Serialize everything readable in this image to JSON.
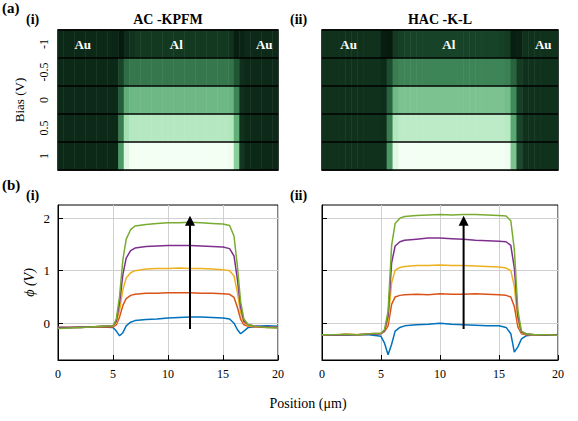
{
  "chart_data": [
    {
      "type": "heatmap",
      "figure_label": "(a)",
      "subpanel": "(i)",
      "title": "AC -KPFM",
      "ylabel": "Bias (V)",
      "x": [
        0.25,
        0.75,
        1.25,
        1.75,
        2.25,
        2.75,
        3.25,
        3.75,
        4.25,
        4.75,
        5.25,
        5.75,
        6.25,
        6.75,
        7.25,
        7.75,
        8.25,
        8.75,
        9.25,
        9.75,
        10.25,
        10.75,
        11.25,
        11.75,
        12.25,
        12.75,
        13.25,
        13.75,
        14.25,
        14.75,
        15.25,
        15.75,
        16.25,
        16.75,
        17.25,
        17.75,
        18.25,
        18.75,
        19.25,
        19.75
      ],
      "y": [
        -1,
        -0.5,
        0,
        0.5,
        1
      ],
      "cells": [
        [
          -0.08,
          -0.08,
          -0.08,
          -0.08,
          -0.08,
          -0.08,
          -0.08,
          -0.08,
          -0.08,
          -0.08,
          -0.1,
          -0.22,
          -0.05,
          0.03,
          0.08,
          0.08,
          0.08,
          0.08,
          0.08,
          0.08,
          0.08,
          0.08,
          0.08,
          0.08,
          0.08,
          0.08,
          0.08,
          0.08,
          0.08,
          0.08,
          0.07,
          0.03,
          -0.18,
          -0.12,
          -0.06,
          -0.06,
          -0.06,
          -0.06,
          -0.06,
          -0.06
        ],
        [
          -0.08,
          -0.08,
          -0.08,
          -0.08,
          -0.08,
          -0.08,
          -0.08,
          -0.08,
          -0.08,
          -0.08,
          -0.08,
          0.2,
          0.5,
          0.57,
          0.57,
          0.57,
          0.57,
          0.57,
          0.57,
          0.57,
          0.57,
          0.57,
          0.57,
          0.57,
          0.57,
          0.57,
          0.57,
          0.57,
          0.57,
          0.57,
          0.57,
          0.55,
          0.35,
          -0.02,
          -0.07,
          -0.07,
          -0.07,
          -0.07,
          -0.07,
          -0.07
        ],
        [
          -0.07,
          -0.07,
          -0.07,
          -0.07,
          -0.07,
          -0.07,
          -0.07,
          -0.07,
          -0.07,
          -0.07,
          -0.07,
          0.4,
          0.95,
          1.03,
          1.03,
          1.03,
          1.03,
          1.03,
          1.03,
          1.03,
          1.03,
          1.03,
          1.03,
          1.03,
          1.03,
          1.03,
          1.03,
          1.03,
          1.03,
          1.03,
          1.03,
          1.0,
          0.65,
          0.0,
          -0.07,
          -0.07,
          -0.07,
          -0.07,
          -0.07,
          -0.07
        ],
        [
          -0.07,
          -0.07,
          -0.07,
          -0.07,
          -0.07,
          -0.07,
          -0.07,
          -0.07,
          -0.07,
          -0.07,
          -0.07,
          0.6,
          1.35,
          1.47,
          1.47,
          1.47,
          1.47,
          1.47,
          1.47,
          1.47,
          1.47,
          1.47,
          1.47,
          1.47,
          1.47,
          1.47,
          1.47,
          1.47,
          1.47,
          1.47,
          1.47,
          1.43,
          0.95,
          0.02,
          -0.07,
          -0.07,
          -0.07,
          -0.07,
          -0.07,
          -0.07
        ],
        [
          -0.08,
          -0.08,
          -0.08,
          -0.08,
          -0.08,
          -0.08,
          -0.08,
          -0.08,
          -0.08,
          -0.08,
          -0.08,
          0.8,
          1.75,
          1.9,
          1.9,
          1.9,
          1.9,
          1.9,
          1.9,
          1.9,
          1.9,
          1.9,
          1.9,
          1.9,
          1.9,
          1.9,
          1.9,
          1.9,
          1.9,
          1.9,
          1.9,
          1.86,
          1.2,
          0.05,
          -0.08,
          -0.08,
          -0.08,
          -0.08,
          -0.08,
          -0.08
        ]
      ],
      "annotations": [
        {
          "text": "Au",
          "x": 2.25
        },
        {
          "text": "Al",
          "x": 10.75
        },
        {
          "text": "Au",
          "x": 18.75
        }
      ]
    },
    {
      "type": "heatmap",
      "subpanel": "(ii)",
      "title": "HAC -K-L",
      "tick_labels": false,
      "x": [
        0.25,
        0.75,
        1.25,
        1.75,
        2.25,
        2.75,
        3.25,
        3.75,
        4.25,
        4.75,
        5.25,
        5.75,
        6.25,
        6.75,
        7.25,
        7.75,
        8.25,
        8.75,
        9.25,
        9.75,
        10.25,
        10.75,
        11.25,
        11.75,
        12.25,
        12.75,
        13.25,
        13.75,
        14.25,
        14.75,
        15.25,
        15.75,
        16.25,
        16.75,
        17.25,
        17.75,
        18.25,
        18.75,
        19.25,
        19.75
      ],
      "y": [
        -1,
        -0.5,
        0,
        0.5,
        1
      ],
      "cells": [
        [
          -0.22,
          -0.22,
          -0.22,
          -0.22,
          -0.22,
          -0.22,
          -0.22,
          -0.22,
          -0.22,
          -0.22,
          -0.45,
          -0.5,
          -0.12,
          -0.05,
          -0.02,
          -0.02,
          -0.02,
          -0.02,
          -0.02,
          -0.02,
          -0.02,
          -0.02,
          -0.02,
          -0.02,
          -0.02,
          -0.02,
          -0.02,
          -0.02,
          -0.02,
          -0.02,
          -0.05,
          -0.1,
          -0.45,
          -0.4,
          -0.22,
          -0.22,
          -0.22,
          -0.22,
          -0.22,
          -0.22
        ],
        [
          -0.22,
          -0.22,
          -0.22,
          -0.22,
          -0.22,
          -0.22,
          -0.22,
          -0.22,
          -0.22,
          -0.22,
          -0.3,
          0.1,
          0.5,
          0.55,
          0.55,
          0.55,
          0.55,
          0.55,
          0.55,
          0.55,
          0.55,
          0.55,
          0.55,
          0.55,
          0.55,
          0.55,
          0.55,
          0.55,
          0.55,
          0.55,
          0.55,
          0.52,
          0.3,
          -0.1,
          -0.22,
          -0.22,
          -0.22,
          -0.22,
          -0.22,
          -0.22
        ],
        [
          -0.22,
          -0.22,
          -0.22,
          -0.22,
          -0.22,
          -0.22,
          -0.22,
          -0.22,
          -0.22,
          -0.22,
          -0.28,
          0.3,
          1.02,
          1.1,
          1.1,
          1.1,
          1.1,
          1.1,
          1.1,
          1.1,
          1.1,
          1.1,
          1.1,
          1.1,
          1.1,
          1.1,
          1.1,
          1.1,
          1.1,
          1.1,
          1.1,
          1.05,
          0.6,
          -0.05,
          -0.22,
          -0.22,
          -0.22,
          -0.22,
          -0.22,
          -0.22
        ],
        [
          -0.22,
          -0.22,
          -0.22,
          -0.22,
          -0.22,
          -0.22,
          -0.22,
          -0.22,
          -0.22,
          -0.22,
          -0.26,
          0.5,
          1.5,
          1.6,
          1.6,
          1.6,
          1.6,
          1.6,
          1.6,
          1.6,
          1.6,
          1.6,
          1.6,
          1.6,
          1.6,
          1.6,
          1.6,
          1.6,
          1.6,
          1.6,
          1.6,
          1.55,
          0.85,
          0.0,
          -0.22,
          -0.22,
          -0.22,
          -0.22,
          -0.22,
          -0.22
        ],
        [
          -0.22,
          -0.22,
          -0.22,
          -0.22,
          -0.22,
          -0.22,
          -0.22,
          -0.22,
          -0.22,
          -0.22,
          -0.24,
          0.7,
          1.9,
          2.05,
          2.05,
          2.05,
          2.05,
          2.05,
          2.05,
          2.05,
          2.05,
          2.05,
          2.05,
          2.05,
          2.05,
          2.05,
          2.05,
          2.05,
          2.05,
          2.05,
          2.05,
          2.0,
          1.1,
          0.05,
          -0.22,
          -0.22,
          -0.22,
          -0.22,
          -0.22,
          -0.22
        ]
      ],
      "annotations": [
        {
          "text": "Au",
          "x": 2.25
        },
        {
          "text": "Al",
          "x": 10.75
        },
        {
          "text": "Au",
          "x": 18.75
        }
      ]
    },
    {
      "type": "line",
      "figure_label": "(b)",
      "subpanel": "(i)",
      "xlabel": "Position (μm)",
      "ylabel": "ϕ (V)",
      "grid": true,
      "x": [
        0,
        1,
        2,
        3,
        4,
        5,
        5.3,
        5.6,
        5.9,
        6.2,
        6.6,
        7,
        8,
        9,
        10,
        11,
        12,
        13,
        14,
        15,
        15.6,
        16,
        16.3,
        16.6,
        16.9,
        17.3,
        18,
        19,
        20
      ],
      "xlim": [
        0,
        20
      ],
      "xticks": [
        0,
        5,
        10,
        15,
        20
      ],
      "ylim": [
        -0.7,
        2.25
      ],
      "yticks": [
        0,
        1,
        2
      ],
      "series": [
        {
          "color": "#0072BD",
          "values": [
            -0.08,
            -0.08,
            -0.08,
            -0.07,
            -0.07,
            -0.08,
            -0.15,
            -0.24,
            -0.18,
            -0.05,
            0.02,
            0.05,
            0.07,
            0.08,
            0.1,
            0.11,
            0.12,
            0.12,
            0.11,
            0.1,
            0.08,
            0.0,
            -0.12,
            -0.2,
            -0.15,
            -0.08,
            -0.06,
            -0.05,
            -0.06
          ]
        },
        {
          "color": "#D95319",
          "values": [
            -0.08,
            -0.08,
            -0.08,
            -0.07,
            -0.07,
            -0.07,
            -0.03,
            0.12,
            0.34,
            0.47,
            0.53,
            0.55,
            0.57,
            0.57,
            0.58,
            0.58,
            0.58,
            0.57,
            0.57,
            0.56,
            0.55,
            0.49,
            0.31,
            0.08,
            -0.03,
            -0.06,
            -0.07,
            -0.08,
            -0.08
          ]
        },
        {
          "color": "#EDB120",
          "values": [
            -0.08,
            -0.08,
            -0.07,
            -0.07,
            -0.06,
            -0.06,
            0.01,
            0.25,
            0.64,
            0.86,
            0.96,
            1.0,
            1.03,
            1.04,
            1.04,
            1.05,
            1.04,
            1.04,
            1.03,
            1.02,
            1.0,
            0.9,
            0.59,
            0.2,
            0.01,
            -0.05,
            -0.06,
            -0.07,
            -0.08
          ]
        },
        {
          "color": "#7E2F8E",
          "values": [
            -0.08,
            -0.08,
            -0.07,
            -0.07,
            -0.06,
            -0.05,
            0.04,
            0.39,
            0.93,
            1.24,
            1.38,
            1.43,
            1.46,
            1.47,
            1.48,
            1.48,
            1.48,
            1.47,
            1.46,
            1.45,
            1.42,
            1.28,
            0.85,
            0.31,
            0.04,
            -0.03,
            -0.06,
            -0.07,
            -0.08
          ]
        },
        {
          "color": "#77AC30",
          "values": [
            -0.1,
            -0.09,
            -0.08,
            -0.07,
            -0.06,
            -0.05,
            0.08,
            0.52,
            1.21,
            1.6,
            1.78,
            1.85,
            1.88,
            1.9,
            1.91,
            1.91,
            1.92,
            1.91,
            1.9,
            1.89,
            1.86,
            1.66,
            1.1,
            0.41,
            0.08,
            -0.03,
            -0.06,
            -0.08,
            -0.09
          ]
        }
      ]
    },
    {
      "type": "line",
      "subpanel": "(ii)",
      "grid": true,
      "tick_labels": "x",
      "x": [
        0,
        1,
        2,
        3,
        4,
        5,
        5.3,
        5.6,
        5.9,
        6.2,
        6.6,
        7,
        8,
        9,
        10,
        11,
        12,
        13,
        14,
        15,
        15.6,
        16,
        16.3,
        16.6,
        16.9,
        17.3,
        18,
        19,
        20
      ],
      "xlim": [
        0,
        20
      ],
      "xticks": [
        0,
        5,
        10,
        15,
        20
      ],
      "ylim": [
        -0.7,
        2.25
      ],
      "yticks": [
        0,
        1,
        2
      ],
      "series": [
        {
          "color": "#0072BD",
          "values": [
            -0.22,
            -0.22,
            -0.23,
            -0.22,
            -0.22,
            -0.25,
            -0.38,
            -0.6,
            -0.4,
            -0.15,
            -0.08,
            -0.05,
            -0.03,
            -0.02,
            0.0,
            -0.02,
            -0.03,
            -0.04,
            -0.05,
            -0.05,
            -0.08,
            -0.2,
            -0.55,
            -0.45,
            -0.3,
            -0.24,
            -0.22,
            -0.22,
            -0.23
          ]
        },
        {
          "color": "#D95319",
          "values": [
            -0.22,
            -0.23,
            -0.21,
            -0.22,
            -0.2,
            -0.19,
            -0.16,
            -0.05,
            0.36,
            0.5,
            0.53,
            0.54,
            0.55,
            0.54,
            0.56,
            0.55,
            0.55,
            0.56,
            0.55,
            0.54,
            0.53,
            0.5,
            0.32,
            -0.07,
            -0.2,
            -0.22,
            -0.22,
            -0.23,
            -0.22
          ]
        },
        {
          "color": "#EDB120",
          "values": [
            -0.22,
            -0.23,
            -0.21,
            -0.22,
            -0.21,
            -0.2,
            -0.15,
            0.05,
            0.77,
            1.01,
            1.06,
            1.08,
            1.1,
            1.1,
            1.11,
            1.1,
            1.1,
            1.09,
            1.08,
            1.07,
            1.05,
            1.0,
            0.7,
            0.04,
            -0.18,
            -0.21,
            -0.22,
            -0.23,
            -0.22
          ]
        },
        {
          "color": "#7E2F8E",
          "values": [
            -0.22,
            -0.23,
            -0.22,
            -0.22,
            -0.21,
            -0.2,
            -0.14,
            0.15,
            1.15,
            1.47,
            1.55,
            1.58,
            1.6,
            1.62,
            1.62,
            1.61,
            1.6,
            1.58,
            1.57,
            1.56,
            1.55,
            1.48,
            1.05,
            0.14,
            -0.17,
            -0.2,
            -0.22,
            -0.23,
            -0.22
          ]
        },
        {
          "color": "#77AC30",
          "values": [
            -0.22,
            -0.22,
            -0.21,
            -0.22,
            -0.2,
            -0.19,
            -0.12,
            0.23,
            1.48,
            1.9,
            2.0,
            2.03,
            2.05,
            2.06,
            2.07,
            2.06,
            2.07,
            2.07,
            2.06,
            2.05,
            2.04,
            1.95,
            1.4,
            0.24,
            -0.15,
            -0.2,
            -0.22,
            -0.22,
            -0.23
          ]
        }
      ]
    }
  ]
}
